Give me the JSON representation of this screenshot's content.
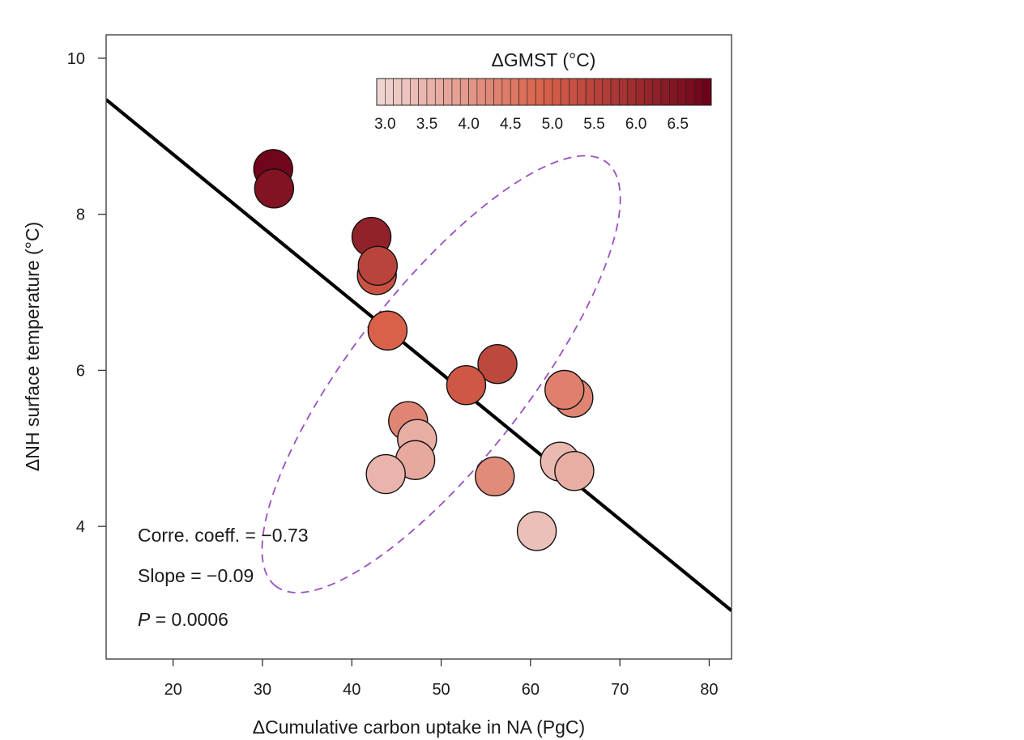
{
  "chart_data": {
    "type": "scatter",
    "xlabel": "ΔCumulative carbon uptake in NA (PgC)",
    "ylabel": "ΔNH surface temperature (°C)",
    "xlim": [
      12.5,
      82.5
    ],
    "ylim": [
      2.3,
      10.3
    ],
    "x_ticks": [
      "20",
      "30",
      "40",
      "50",
      "60",
      "70",
      "80"
    ],
    "y_ticks": [
      "4",
      "6",
      "8",
      "10"
    ],
    "colorbar": {
      "title": "ΔGMST (°C)",
      "range": [
        2.9,
        6.9
      ],
      "ticks": [
        "3.0",
        "3.5",
        "4.0",
        "4.5",
        "5.0",
        "5.5",
        "6.0",
        "6.5"
      ],
      "color_low": "#f0d8d5",
      "color_mid": "#d9614a",
      "color_high": "#6b0019"
    },
    "points": [
      {
        "x": 31.2,
        "y": 8.58,
        "c": 6.8
      },
      {
        "x": 31.3,
        "y": 8.33,
        "c": 6.5
      },
      {
        "x": 42.2,
        "y": 7.71,
        "c": 6.2
      },
      {
        "x": 42.8,
        "y": 7.22,
        "c": 5.2
      },
      {
        "x": 42.9,
        "y": 7.34,
        "c": 5.5
      },
      {
        "x": 44.0,
        "y": 6.51,
        "c": 4.9
      },
      {
        "x": 56.3,
        "y": 6.08,
        "c": 5.4
      },
      {
        "x": 52.8,
        "y": 5.81,
        "c": 5.1
      },
      {
        "x": 64.8,
        "y": 5.65,
        "c": 4.3
      },
      {
        "x": 63.8,
        "y": 5.75,
        "c": 4.4
      },
      {
        "x": 46.3,
        "y": 5.35,
        "c": 4.3
      },
      {
        "x": 47.3,
        "y": 5.12,
        "c": 3.6
      },
      {
        "x": 47.1,
        "y": 4.85,
        "c": 3.7
      },
      {
        "x": 43.8,
        "y": 4.67,
        "c": 3.5
      },
      {
        "x": 56.0,
        "y": 4.64,
        "c": 4.2
      },
      {
        "x": 63.3,
        "y": 4.83,
        "c": 3.4
      },
      {
        "x": 64.9,
        "y": 4.71,
        "c": 3.6
      },
      {
        "x": 60.7,
        "y": 3.94,
        "c": 3.3
      }
    ],
    "regression": {
      "slope": -0.09,
      "x_start": 12.5,
      "y_start": 9.47,
      "x_end": 82.5,
      "y_end": 2.92
    },
    "ellipse": {
      "cx": 50.0,
      "cy": 5.95,
      "rx": 27.0,
      "ry": 2.0,
      "angle_deg": -52
    },
    "annotations": {
      "corr": "Corre. coeff. = −0.73",
      "slope": "Slope = −0.09",
      "p_label": "P",
      "p_value": " = 0.0006"
    },
    "colors": {
      "regression_line": "#000000",
      "ellipse": "#9b4fc0",
      "frame": "#333333"
    },
    "grid": false
  }
}
